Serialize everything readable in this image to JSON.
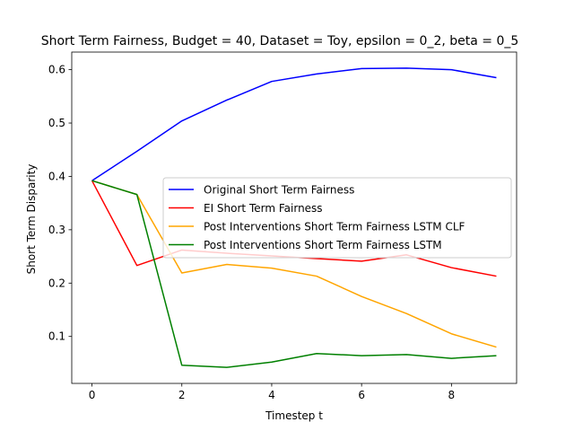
{
  "chart_data": {
    "type": "line",
    "title": "Short Term Fairness, Budget = 40, Dataset = Toy, epsilon = 0_2, beta = 0_5",
    "xlabel": "Timestep t",
    "ylabel": "Short Term Disparity",
    "xlim": [
      -0.45,
      9.45
    ],
    "ylim": [
      0.012,
      0.633
    ],
    "xticks": [
      0,
      2,
      4,
      6,
      8
    ],
    "xtick_labels": [
      "0",
      "2",
      "4",
      "6",
      "8"
    ],
    "yticks": [
      0.1,
      0.2,
      0.3,
      0.4,
      0.5,
      0.6
    ],
    "ytick_labels": [
      "0.1",
      "0.2",
      "0.3",
      "0.4",
      "0.5",
      "0.6"
    ],
    "grid": false,
    "legend_position": "center-right",
    "x": [
      0,
      1,
      2,
      3,
      4,
      5,
      6,
      7,
      8,
      9
    ],
    "series": [
      {
        "name": "Original Short Term Fairness",
        "color": "#0000ff",
        "values": [
          0.392,
          0.447,
          0.504,
          0.543,
          0.578,
          0.592,
          0.602,
          0.603,
          0.6,
          0.585
        ]
      },
      {
        "name": "EI Short Term Fairness",
        "color": "#ff0000",
        "values": [
          0.392,
          0.233,
          0.262,
          0.256,
          0.251,
          0.246,
          0.241,
          0.253,
          0.229,
          0.213
        ]
      },
      {
        "name": "Post Interventions Short Term Fairness LSTM CLF",
        "color": "#ffa500",
        "values": [
          0.392,
          0.366,
          0.219,
          0.235,
          0.228,
          0.213,
          0.175,
          0.143,
          0.105,
          0.08
        ]
      },
      {
        "name": "Post Interventions Short Term Fairness LSTM",
        "color": "#008000",
        "values": [
          0.392,
          0.366,
          0.046,
          0.042,
          0.052,
          0.068,
          0.064,
          0.066,
          0.059,
          0.064
        ]
      }
    ]
  }
}
